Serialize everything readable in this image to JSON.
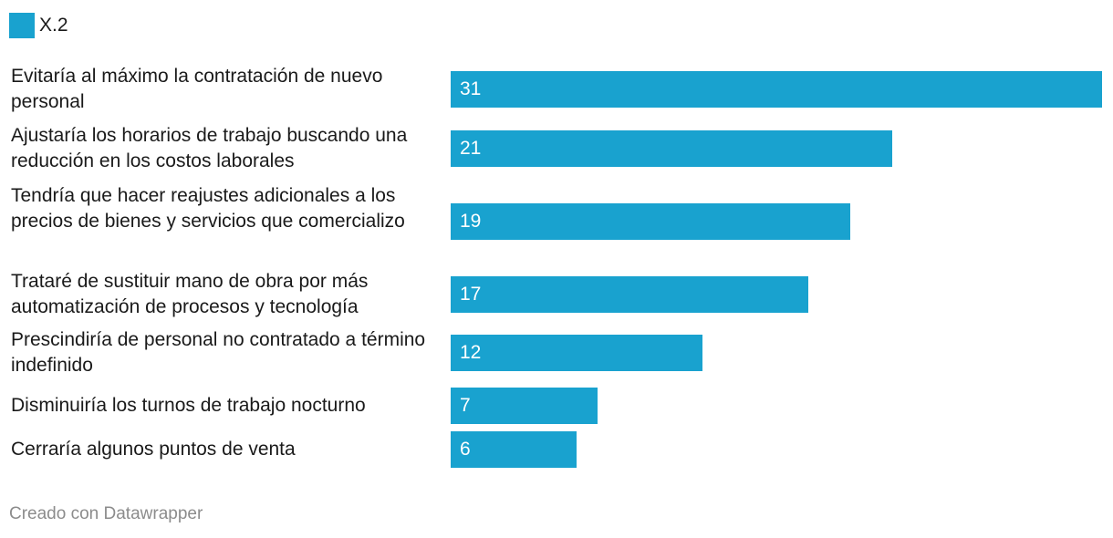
{
  "colors": {
    "bar": "#19a2cf",
    "text": "#1a1a1a",
    "footer": "#8c8c8c"
  },
  "legend": {
    "label": "X.2"
  },
  "footer": {
    "text": "Creado con Datawrapper"
  },
  "chart_data": {
    "type": "bar",
    "orientation": "horizontal",
    "categories": [
      "Evitaría al máximo la contratación de nuevo personal",
      "Ajustaría los horarios de trabajo buscando una reducción en los costos laborales",
      "Tendría que hacer reajustes adicionales a los precios de bienes y servicios que comercializo",
      "Trataré de sustituir mano de obra por más automatización de procesos y tecnología",
      "Prescindiría de personal no contratado a término indefinido",
      "Disminuiría los turnos de trabajo nocturno",
      "Cerraría algunos puntos de venta"
    ],
    "series": [
      {
        "name": "X.2",
        "values": [
          31,
          21,
          19,
          17,
          12,
          7,
          6
        ]
      }
    ],
    "title": "",
    "xlabel": "",
    "ylabel": "",
    "xlim": [
      0,
      31
    ],
    "grid": false,
    "legend_position": "top-left",
    "data_labels": "inside-bar-left"
  }
}
